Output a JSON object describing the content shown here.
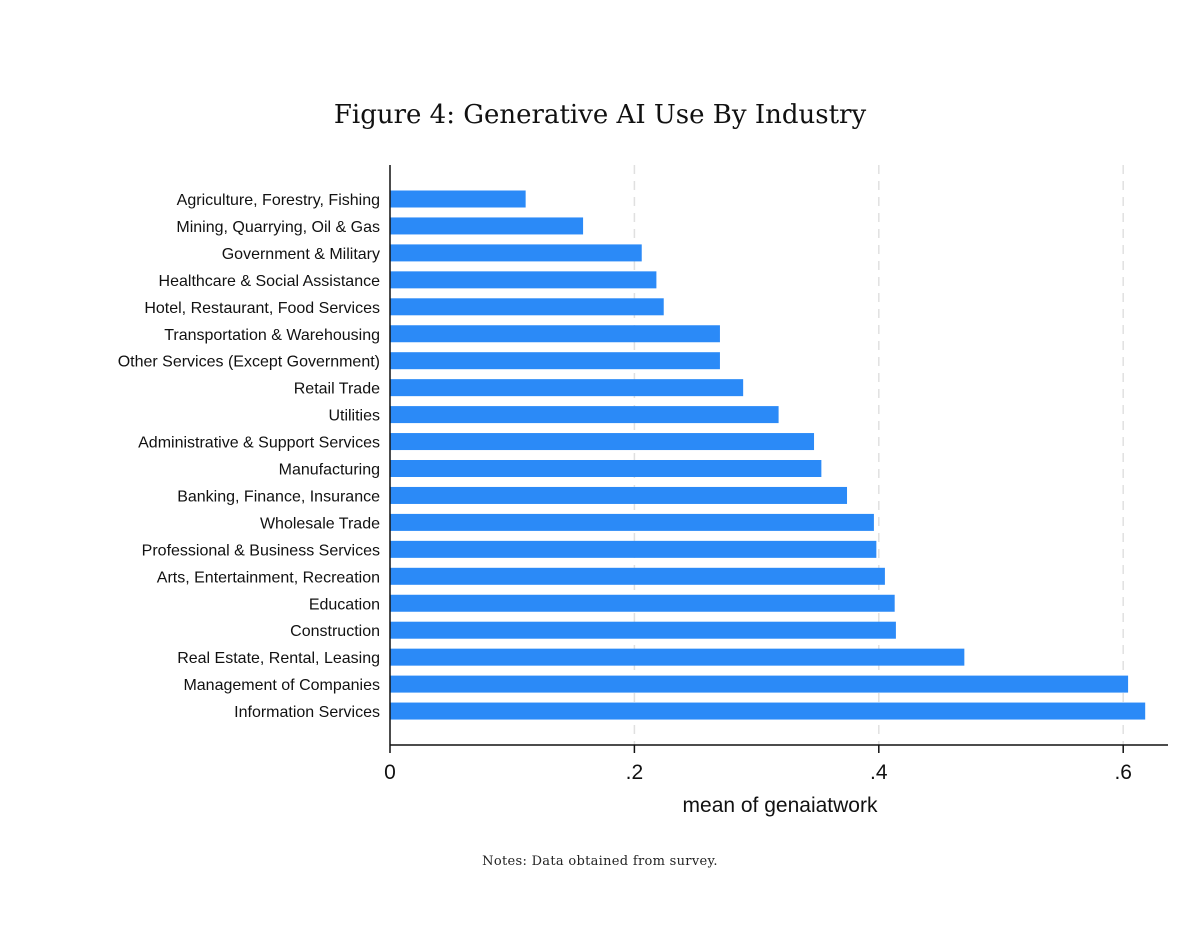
{
  "title": "Figure 4: Generative AI Use By Industry",
  "notes": "Notes: Data obtained from survey.",
  "colors": {
    "bar": "#2b8af7",
    "axis": "#111111",
    "grid": "#e0e0e0"
  },
  "chart_data": {
    "type": "bar",
    "orientation": "horizontal",
    "title": "Figure 4: Generative AI Use By Industry",
    "xlabel": "mean of genaiatwork",
    "ylabel": "",
    "xlim": [
      0,
      0.63
    ],
    "xticks": [
      0,
      0.2,
      0.4,
      0.6
    ],
    "xtick_labels": [
      "0",
      ".2",
      ".4",
      ".6"
    ],
    "grid": "vertical dashed",
    "categories": [
      "Agriculture, Forestry, Fishing",
      "Mining, Quarrying, Oil & Gas",
      "Government & Military",
      "Healthcare & Social Assistance",
      "Hotel, Restaurant, Food Services",
      "Transportation & Warehousing",
      "Other Services (Except Government)",
      "Retail Trade",
      "Utilities",
      "Administrative & Support Services",
      "Manufacturing",
      "Banking, Finance, Insurance",
      "Wholesale Trade",
      "Professional & Business Services",
      "Arts, Entertainment, Recreation",
      "Education",
      "Construction",
      "Real Estate, Rental, Leasing",
      "Management of Companies",
      "Information Services"
    ],
    "values": [
      0.111,
      0.158,
      0.206,
      0.218,
      0.224,
      0.27,
      0.27,
      0.289,
      0.318,
      0.347,
      0.353,
      0.374,
      0.396,
      0.398,
      0.405,
      0.413,
      0.414,
      0.47,
      0.604,
      0.618
    ]
  }
}
